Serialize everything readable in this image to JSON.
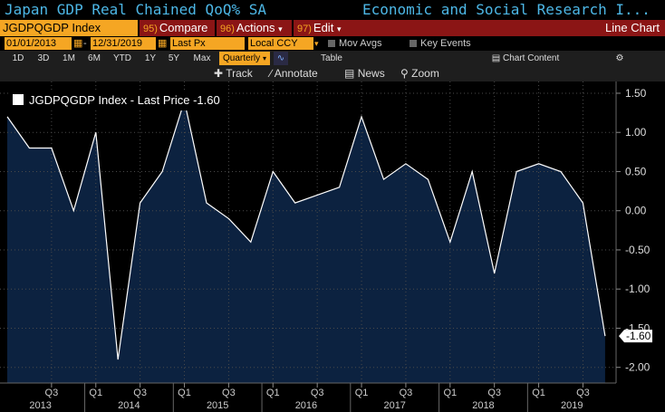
{
  "header": {
    "title": "Japan GDP Real Chained QoQ% SA",
    "source": "Economic and Social Research I..."
  },
  "command": {
    "ticker": "JGDPQGDP Index",
    "compare": {
      "num": "95)",
      "label": "Compare"
    },
    "actions": {
      "num": "96)",
      "label": "Actions"
    },
    "edit": {
      "num": "97)",
      "label": "Edit"
    },
    "chart_type": "Line Chart"
  },
  "params": {
    "start_date": "01/01/2013",
    "end_date": "12/31/2019",
    "field": "Last Px",
    "currency": "Local CCY",
    "mov_avgs": "Mov Avgs",
    "key_events": "Key Events"
  },
  "range": {
    "buttons": [
      "1D",
      "3D",
      "1M",
      "6M",
      "YTD",
      "1Y",
      "5Y",
      "Max"
    ],
    "period": "Quarterly",
    "table": "Table",
    "chart_content": "Chart Content"
  },
  "tools": {
    "track": "Track",
    "annotate": "Annotate",
    "news": "News",
    "zoom": "Zoom"
  },
  "colors": {
    "accent": "#f5a623",
    "fill": "#0c2240",
    "line": "#ffffff",
    "title": "#4db7e6",
    "button": "#8b1515"
  },
  "chart_data": {
    "type": "area",
    "series": [
      {
        "name": "JGDPQGDP Index - Last Price -1.60",
        "values": [
          1.2,
          0.8,
          0.8,
          0.0,
          1.0,
          -1.9,
          0.1,
          0.5,
          1.4,
          0.1,
          -0.1,
          -0.4,
          0.5,
          0.1,
          0.2,
          0.3,
          1.2,
          0.4,
          0.6,
          0.4,
          -0.4,
          0.5,
          -0.8,
          0.5,
          0.6,
          0.5,
          0.1,
          -1.6
        ]
      }
    ],
    "last_value_label": "-1.60",
    "y_ticks": [
      "1.50",
      "1.00",
      "0.50",
      "0.00",
      "-0.50",
      "-1.00",
      "-1.50",
      "-2.00"
    ],
    "ylim": [
      -2.2,
      1.65
    ],
    "x_ticks": [
      {
        "label": "Q3",
        "index": 2
      },
      {
        "label": "Q1",
        "index": 4
      },
      {
        "label": "Q3",
        "index": 6
      },
      {
        "label": "Q1",
        "index": 8
      },
      {
        "label": "Q3",
        "index": 10
      },
      {
        "label": "Q1",
        "index": 12
      },
      {
        "label": "Q3",
        "index": 14
      },
      {
        "label": "Q1",
        "index": 16
      },
      {
        "label": "Q3",
        "index": 18
      },
      {
        "label": "Q1",
        "index": 20
      },
      {
        "label": "Q3",
        "index": 22
      },
      {
        "label": "Q1",
        "index": 24
      },
      {
        "label": "Q3",
        "index": 26
      }
    ],
    "years": [
      {
        "label": "2013",
        "index": 1
      },
      {
        "label": "2014",
        "index": 5
      },
      {
        "label": "2015",
        "index": 9
      },
      {
        "label": "2016",
        "index": 13
      },
      {
        "label": "2017",
        "index": 17
      },
      {
        "label": "2018",
        "index": 21
      },
      {
        "label": "2019",
        "index": 25
      }
    ],
    "grid": true
  }
}
